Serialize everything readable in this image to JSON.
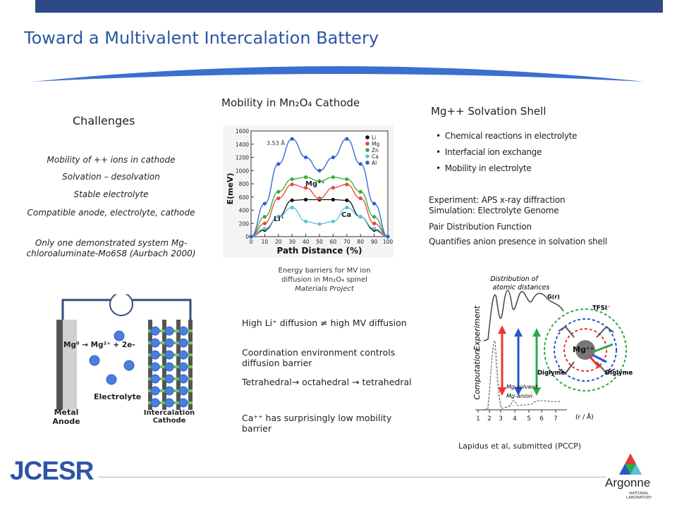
{
  "title": "Toward a Multivalent Intercalation Battery",
  "colors": {
    "accent": "#2c55a4",
    "topbar": "#2e4a86",
    "arc": "#3a6fcf"
  },
  "challenges": {
    "heading": "Challenges",
    "items": [
      "Mobility of ++ ions in cathode",
      "Solvation – desolvation",
      "Stable electrolyte",
      "Compatible anode, electrolyte, cathode",
      "Only one demonstrated system Mg-chloroaluminate-Mo6S8 (Aurbach 2000)"
    ]
  },
  "battery": {
    "reaction": "Mg⁰  → Mg²⁺ + 2e-",
    "electrolyte": "Electrolyte",
    "anode": "Metal Anode",
    "cathode": "Intercalation Cathode"
  },
  "mobility": {
    "heading": "Mobility in Mn₂O₄ Cathode",
    "chart": {
      "ylabel": "E(meV)",
      "xlabel": "Path Distance (%)",
      "annotation": "3.53 Å",
      "yticks": [
        "0",
        "200",
        "400",
        "600",
        "800",
        "1000",
        "1200",
        "1400",
        "1600"
      ],
      "xticks": [
        "0",
        "10",
        "20",
        "30",
        "40",
        "50",
        "60",
        "70",
        "80",
        "90",
        "100"
      ],
      "legend": [
        "Li",
        "Mg",
        "Zn",
        "Ca",
        "Al"
      ],
      "ion_labels": {
        "mg": "Mg⁺⁺",
        "li": "Li⁺",
        "ca": "Ca"
      }
    },
    "caption_line1": "Energy barriers for MV ion",
    "caption_line2": "diffusion in Mn₂O₄ spinel",
    "caption_line3": "Materials Project",
    "points": [
      "High Li⁺ diffusion ≠ high MV diffusion",
      "Coordination environment controls diffusion barrier",
      "Tetrahedral→ octahedral → tetrahedral",
      "Ca⁺⁺ has surprisingly low mobility barrier"
    ]
  },
  "solvation": {
    "heading": "Mg++  Solvation Shell",
    "bullets": [
      "Chemical reactions in electrolyte",
      "Interfacial ion exchange",
      "Mobility in electrolyte"
    ],
    "experiment": "Experiment: APS x-ray diffraction",
    "simulation": "Simulation: Electrolyte Genome",
    "pdf": "Pair Distribution Function",
    "quantifies": "Quantifies anion presence in solvation shell",
    "figure": {
      "title_line1": "Distribution of",
      "title_line2": "atomic distances",
      "gr": "G(r)",
      "experiment_label": "Experiment",
      "computation_label": "Computation",
      "mg_solvent": "Mg-solvent",
      "mg_anion": "Mg-anion",
      "xticks": [
        "1",
        "2",
        "3",
        "4",
        "5",
        "6",
        "7"
      ],
      "xunit": "(r / Å)",
      "tfsi": "TFSI⁻",
      "diglyme": "Diglyme",
      "mg": "Mg⁺⁺"
    },
    "citation": "Lapidus et al, submitted (PCCP)"
  },
  "footer": {
    "logo_left": "JCESR",
    "logo_right_line1": "Argonne",
    "logo_right_line2": "NATIONAL LABORATORY"
  },
  "chart_data": {
    "type": "line",
    "title": "",
    "xlabel": "Path Distance (%)",
    "ylabel": "E(meV)",
    "xlim": [
      0,
      100
    ],
    "ylim": [
      0,
      1600
    ],
    "x": [
      0,
      10,
      20,
      30,
      40,
      50,
      60,
      70,
      80,
      90,
      100
    ],
    "series": [
      {
        "name": "Li",
        "color": "#111111",
        "values": [
          0,
          100,
          300,
          550,
          560,
          560,
          560,
          550,
          300,
          100,
          0
        ]
      },
      {
        "name": "Mg",
        "color": "#e04a3a",
        "values": [
          0,
          200,
          580,
          790,
          740,
          580,
          740,
          790,
          580,
          200,
          0
        ]
      },
      {
        "name": "Zn",
        "color": "#3aaa3a",
        "values": [
          0,
          300,
          680,
          870,
          900,
          840,
          900,
          870,
          680,
          300,
          0
        ]
      },
      {
        "name": "Ca",
        "color": "#5bc0de",
        "values": [
          0,
          120,
          300,
          440,
          230,
          190,
          230,
          440,
          300,
          120,
          0
        ]
      },
      {
        "name": "Al",
        "color": "#2f5fd0",
        "values": [
          0,
          500,
          1100,
          1480,
          1200,
          1000,
          1200,
          1480,
          1100,
          500,
          0
        ]
      }
    ],
    "legend": "top-right",
    "grid": false
  }
}
